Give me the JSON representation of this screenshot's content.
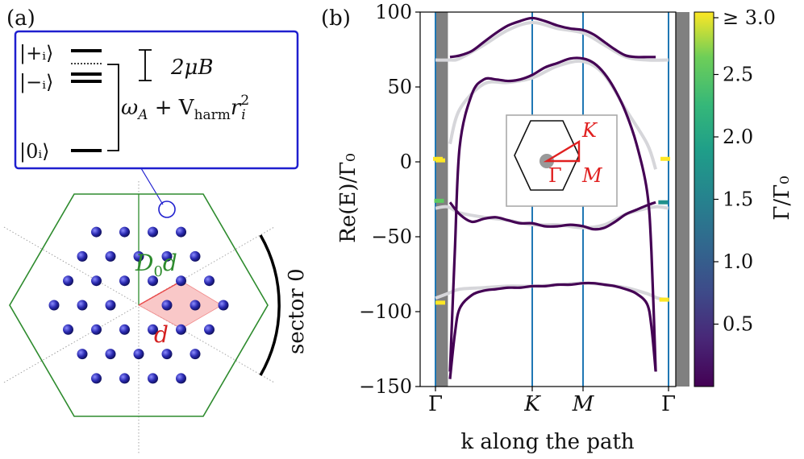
{
  "panel_a": {
    "label": "(a)",
    "levels": [
      {
        "name": "plus",
        "text": "|+ᵢ⟩"
      },
      {
        "name": "minus",
        "text": "|−ᵢ⟩"
      },
      {
        "name": "zero",
        "text": "|0ᵢ⟩"
      }
    ],
    "zeeman_label": "2μB",
    "trap_label_main": "ω",
    "trap_label_sub_A": "A",
    "trap_label_plus": " + V",
    "trap_label_sub_harm": "harm",
    "trap_label_r": "r",
    "trap_label_sub_i": "i",
    "trap_label_sup_2": "2",
    "distance_label_main": "D",
    "distance_label_sub": "0",
    "distance_label_d": "d",
    "unit_cell_label": "d",
    "sector_label": "sector 0",
    "colors": {
      "box": "#1f1fcf",
      "hexagon": "#2e8b2e",
      "atoms": "#2a2aa8",
      "unit_cell": "#f7b5b5",
      "unit_cell_text": "#d42020",
      "distance_text": "#2e8b2e"
    }
  },
  "panel_b": {
    "label": "(b)",
    "ylabel": "Re(E)/Γ₀",
    "xlabel": "k along the path",
    "inset_labels": {
      "K": "K",
      "Gamma": "Γ",
      "M": "M"
    },
    "colorbar": {
      "label": "Γ/Γ₀",
      "tick_labels": [
        "0.5",
        "1.0",
        "1.5",
        "2.0",
        "2.5",
        "≥ 3.0"
      ],
      "ticks": [
        0.5,
        1.0,
        1.5,
        2.0,
        2.5,
        3.0
      ]
    }
  },
  "chart_data": {
    "type": "line",
    "title": "",
    "xlabel": "k along the path",
    "ylabel": "Re(E)/Γ₀",
    "ylim": [
      -150,
      100
    ],
    "yticks": [
      100,
      50,
      0,
      -50,
      -100,
      -150
    ],
    "ytick_labels": [
      "100",
      "50",
      "0",
      "−50",
      "−100",
      "−150"
    ],
    "xtick_positions": [
      0.0,
      0.4,
      0.6,
      1.0
    ],
    "xtick_labels": [
      "Γ",
      "K",
      "M",
      "Γ"
    ],
    "light_cone_shaded": [
      [
        0.0,
        0.055
      ],
      [
        0.945,
        1.0
      ]
    ],
    "vertical_lines": [
      0.0,
      0.4,
      0.6,
      1.0
    ],
    "series": [
      {
        "name": "band1",
        "color_value": 0.2,
        "x": [
          0.06,
          0.1,
          0.15,
          0.2,
          0.25,
          0.3,
          0.35,
          0.4,
          0.45,
          0.5,
          0.55,
          0.6,
          0.65,
          0.7,
          0.75,
          0.8,
          0.85,
          0.9,
          0.94
        ],
        "y": [
          70,
          71,
          74,
          80,
          86,
          91,
          94,
          96,
          94,
          91,
          89,
          88,
          85,
          80,
          75,
          71,
          70,
          70,
          70
        ]
      },
      {
        "name": "band2",
        "color_value": 0.2,
        "x": [
          0.06,
          0.08,
          0.1,
          0.15,
          0.2,
          0.25,
          0.3,
          0.35,
          0.4,
          0.45,
          0.5,
          0.55,
          0.6,
          0.65,
          0.7,
          0.75,
          0.8,
          0.85,
          0.9,
          0.92,
          0.94
        ],
        "y": [
          -140,
          -60,
          10,
          45,
          55,
          55,
          54,
          55,
          58,
          63,
          66,
          69,
          69,
          66,
          59,
          48,
          33,
          12,
          -20,
          -60,
          -140
        ]
      },
      {
        "name": "band3",
        "color_value": 0.2,
        "x": [
          0.06,
          0.1,
          0.15,
          0.2,
          0.25,
          0.3,
          0.35,
          0.4,
          0.45,
          0.5,
          0.55,
          0.6,
          0.65,
          0.7,
          0.75,
          0.8,
          0.85,
          0.9,
          0.94
        ],
        "y": [
          -27,
          -35,
          -40,
          -38,
          -37,
          -39,
          -41,
          -41,
          -43,
          -43,
          -42,
          -43,
          -45,
          -44,
          -40,
          -35,
          -32,
          -29,
          -27
        ]
      },
      {
        "name": "band4",
        "color_value": 0.2,
        "x": [
          0.06,
          0.08,
          0.1,
          0.15,
          0.2,
          0.25,
          0.3,
          0.35,
          0.4,
          0.45,
          0.5,
          0.55,
          0.6,
          0.65,
          0.7,
          0.75,
          0.8,
          0.85,
          0.9,
          0.92,
          0.94
        ],
        "y": [
          -145,
          -115,
          -98,
          -89,
          -86,
          -85,
          -84,
          -84,
          -83,
          -83,
          -82,
          -82,
          -81,
          -81,
          -82,
          -83,
          -85,
          -88,
          -95,
          -110,
          -140
        ]
      }
    ],
    "reference_bands_gray": [
      {
        "x": [
          0.0,
          0.06,
          0.1,
          0.2,
          0.3,
          0.4,
          0.5,
          0.6,
          0.7,
          0.8,
          0.9,
          1.0
        ],
        "y": [
          68,
          68,
          69,
          78,
          88,
          93,
          89,
          86,
          78,
          70,
          68,
          68
        ]
      },
      {
        "x": [
          0.06,
          0.1,
          0.2,
          0.3,
          0.4,
          0.5,
          0.6,
          0.7,
          0.8,
          0.9,
          0.94
        ],
        "y": [
          12,
          35,
          52,
          53,
          56,
          64,
          67,
          58,
          35,
          12,
          -5
        ]
      },
      {
        "x": [
          0.0,
          0.05,
          0.1,
          0.2,
          0.3,
          0.4,
          0.5,
          0.6,
          0.7,
          0.8,
          0.9,
          0.95,
          1.0
        ],
        "y": [
          -31,
          -30,
          -34,
          -37,
          -39,
          -42,
          -42,
          -44,
          -42,
          -35,
          -31,
          -30,
          -31
        ]
      },
      {
        "x": [
          0.0,
          0.05,
          0.1,
          0.2,
          0.3,
          0.4,
          0.5,
          0.6,
          0.7,
          0.8,
          0.9,
          0.95,
          1.0
        ],
        "y": [
          -91,
          -88,
          -85,
          -84,
          -83,
          -83,
          -82,
          -81,
          -82,
          -84,
          -88,
          -91,
          -92
        ]
      }
    ],
    "high_loss_points": [
      {
        "x": 0.01,
        "y": 2,
        "value": 3.0
      },
      {
        "x": 0.02,
        "y": 1,
        "value": 3.0
      },
      {
        "x": 0.015,
        "y": -26,
        "value": 2.5
      },
      {
        "x": 0.02,
        "y": -94,
        "value": 3.0
      },
      {
        "x": 0.985,
        "y": 2,
        "value": 3.0
      },
      {
        "x": 0.975,
        "y": -27,
        "value": 2.2
      },
      {
        "x": 0.98,
        "y": -92,
        "value": 3.0
      }
    ]
  }
}
